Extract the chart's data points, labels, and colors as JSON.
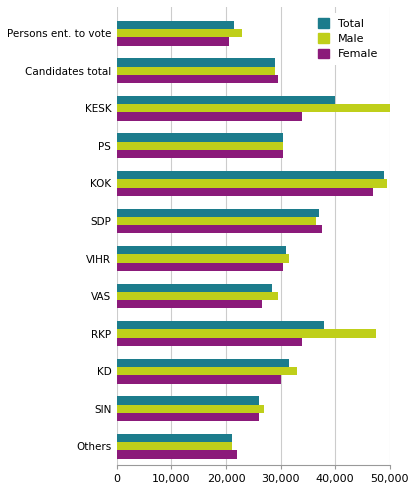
{
  "categories": [
    "Persons ent. to vote",
    "Candidates total",
    "KESK",
    "PS",
    "KOK",
    "SDP",
    "VIHR",
    "VAS",
    "RKP",
    "KD",
    "SIN",
    "Others"
  ],
  "total": [
    21500,
    29000,
    40000,
    30500,
    49000,
    37000,
    31000,
    28500,
    38000,
    31500,
    26000,
    21000
  ],
  "male": [
    23000,
    29000,
    50000,
    30500,
    49500,
    36500,
    31500,
    29500,
    47500,
    33000,
    27000,
    21000
  ],
  "female": [
    20500,
    29500,
    34000,
    30500,
    47000,
    37500,
    30500,
    26500,
    34000,
    30000,
    26000,
    22000
  ],
  "color_total": "#1C7C8C",
  "color_male": "#BFCF1A",
  "color_female": "#8B1A7A",
  "xlim": [
    0,
    50000
  ],
  "xticks": [
    0,
    10000,
    20000,
    30000,
    40000,
    50000
  ],
  "xticklabels": [
    "0",
    "10,000",
    "20,000",
    "30,000",
    "40,000",
    "50,000"
  ],
  "legend_labels": [
    "Total",
    "Male",
    "Female"
  ],
  "bar_height": 0.22,
  "figure_width": 4.16,
  "figure_height": 4.91,
  "dpi": 100
}
